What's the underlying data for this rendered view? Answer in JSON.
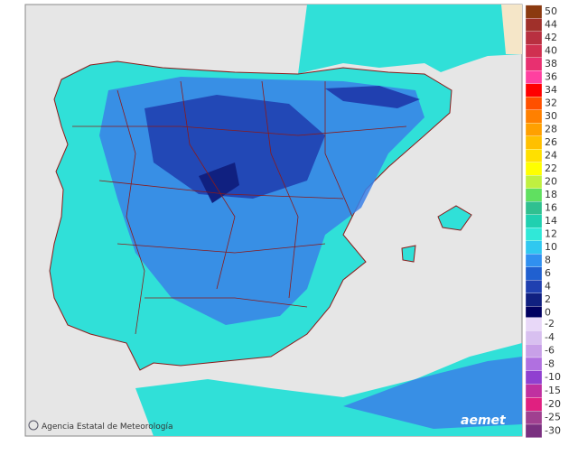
{
  "legend": [
    {
      "label": "50",
      "color": "#8b3a10"
    },
    {
      "label": "44",
      "color": "#a0302a"
    },
    {
      "label": "42",
      "color": "#b83040"
    },
    {
      "label": "40",
      "color": "#d03050"
    },
    {
      "label": "38",
      "color": "#e83070"
    },
    {
      "label": "36",
      "color": "#ff40a0"
    },
    {
      "label": "34",
      "color": "#ff0000"
    },
    {
      "label": "32",
      "color": "#ff5000"
    },
    {
      "label": "30",
      "color": "#ff8000"
    },
    {
      "label": "28",
      "color": "#ffa000"
    },
    {
      "label": "26",
      "color": "#ffc000"
    },
    {
      "label": "24",
      "color": "#ffe000"
    },
    {
      "label": "22",
      "color": "#ffff00"
    },
    {
      "label": "20",
      "color": "#c0f040"
    },
    {
      "label": "18",
      "color": "#60e060"
    },
    {
      "label": "16",
      "color": "#30c090"
    },
    {
      "label": "14",
      "color": "#20d0b0"
    },
    {
      "label": "12",
      "color": "#30e8d8"
    },
    {
      "label": "10",
      "color": "#30c8f0"
    },
    {
      "label": "8",
      "color": "#3090f0"
    },
    {
      "label": "6",
      "color": "#2060d0"
    },
    {
      "label": "4",
      "color": "#2040b0"
    },
    {
      "label": "2",
      "color": "#102080"
    },
    {
      "label": "0",
      "color": "#000060"
    },
    {
      "label": "-2",
      "color": "#e8d8f8"
    },
    {
      "label": "-4",
      "color": "#d8c0f0"
    },
    {
      "label": "-6",
      "color": "#c8a0e8"
    },
    {
      "label": "-8",
      "color": "#b070e0"
    },
    {
      "label": "-10",
      "color": "#9040d0"
    },
    {
      "label": "-15",
      "color": "#c030a0"
    },
    {
      "label": "-20",
      "color": "#e02080"
    },
    {
      "label": "-25",
      "color": "#a04090"
    },
    {
      "label": "-30",
      "color": "#7a3080"
    }
  ],
  "attribution": "Agencia Estatal de Meteorología",
  "logo": "aemet"
}
